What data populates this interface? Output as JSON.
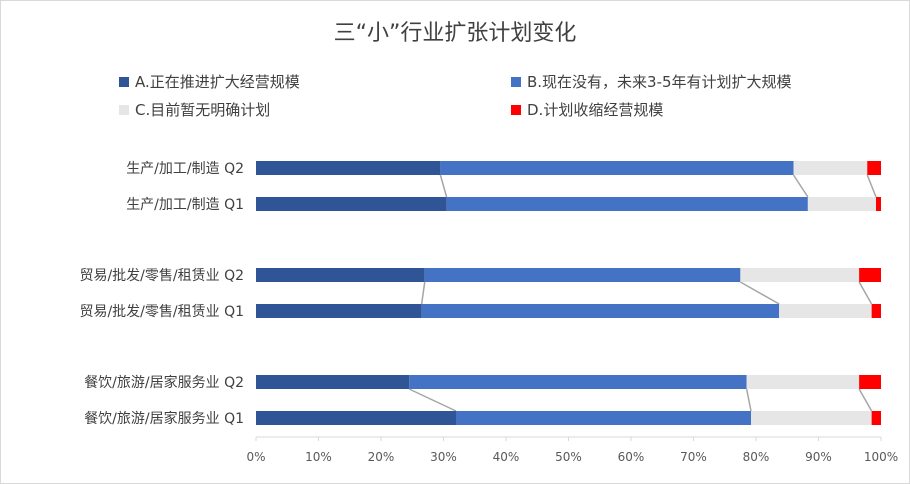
{
  "chart_data": {
    "type": "bar",
    "orientation": "horizontal",
    "stacked": "percent",
    "title": "三“小”行业扩张计划变化",
    "categories": [
      "生产/加工/制造 Q2",
      "生产/加工/制造 Q1",
      "贸易/批发/零售/租赁业 Q2",
      "贸易/批发/零售/租赁业 Q1",
      "餐饮/旅游/居家服务业 Q2",
      "餐饮/旅游/居家服务业 Q1"
    ],
    "series": [
      {
        "name": "A.正在推进扩大经营规模",
        "color": "#2f5597",
        "values": [
          29.5,
          30.5,
          27.0,
          26.5,
          24.5,
          32.0
        ]
      },
      {
        "name": "B.现在没有，未来3-5年有计划扩大规模",
        "color": "#4472c4",
        "values": [
          56.5,
          57.8,
          50.5,
          57.2,
          54.0,
          47.2
        ]
      },
      {
        "name": "C.目前暂无明确计划",
        "color": "#e7e6e6",
        "values": [
          11.8,
          10.9,
          19.0,
          14.8,
          18.0,
          19.3
        ]
      },
      {
        "name": "D.计划收缩经营规模",
        "color": "#ff0000",
        "values": [
          2.2,
          0.8,
          3.5,
          1.5,
          3.5,
          1.5
        ]
      }
    ],
    "xlim": [
      0,
      100
    ],
    "x_ticks": [
      "0%",
      "10%",
      "20%",
      "30%",
      "40%",
      "50%",
      "60%",
      "70%",
      "80%",
      "90%",
      "100%"
    ],
    "series_lines": true,
    "grid": false,
    "legend_position": "top"
  }
}
